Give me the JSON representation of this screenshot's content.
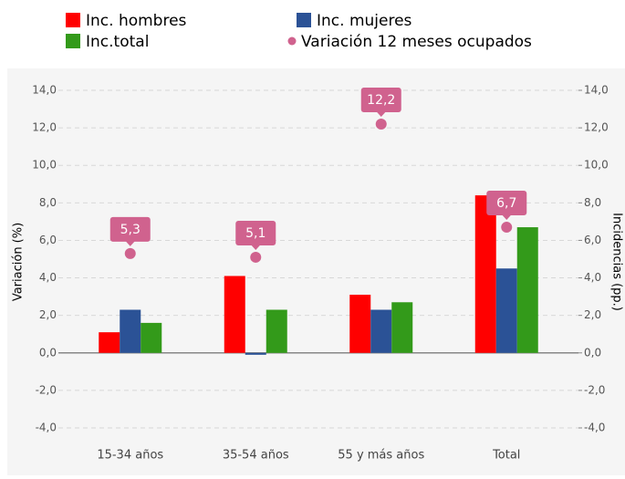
{
  "chart_data": {
    "type": "bar",
    "categories": [
      "15-34 años",
      "35-54 años",
      "55 y más años",
      "Total"
    ],
    "series": [
      {
        "name": "Inc. hombres",
        "color": "#ff0000",
        "values": [
          1.1,
          4.1,
          3.1,
          8.4
        ],
        "axis": "y2"
      },
      {
        "name": "Inc. mujeres",
        "color": "#2b5296",
        "values": [
          2.3,
          -0.1,
          2.3,
          4.5
        ],
        "axis": "y2"
      },
      {
        "name": "Inc.total",
        "color": "#339a1a",
        "values": [
          1.6,
          2.3,
          2.7,
          6.7
        ],
        "axis": "y2"
      },
      {
        "name": "Variación 12 meses ocupados",
        "color": "#d0628e",
        "type": "scatter",
        "values": [
          5.3,
          5.1,
          12.2,
          6.7
        ],
        "value_labels": [
          "5,3",
          "5,1",
          "12,2",
          "6,7"
        ]
      }
    ],
    "ylabel": "Variación (%)",
    "y2label": "Incidencias (pp.)",
    "ylim": [
      -4,
      14
    ],
    "yticks": [
      {
        "value": -4,
        "label": "-4,0"
      },
      {
        "value": -2,
        "label": "-2,0"
      },
      {
        "value": 0,
        "label": "0,0"
      },
      {
        "value": 2,
        "label": "2,0"
      },
      {
        "value": 4,
        "label": "4,0"
      },
      {
        "value": 6,
        "label": "6,0"
      },
      {
        "value": 8,
        "label": "8,0"
      },
      {
        "value": 10,
        "label": "10,0"
      },
      {
        "value": 12,
        "label": "12,0"
      },
      {
        "value": 14,
        "label": "14,0"
      }
    ],
    "y2lim": [
      -4,
      14
    ],
    "y2ticks": [
      {
        "value": -4,
        "label": "-4,0"
      },
      {
        "value": -2,
        "label": "-2,0"
      },
      {
        "value": 0,
        "label": "0,0"
      },
      {
        "value": 2,
        "label": "2,0"
      },
      {
        "value": 4,
        "label": "4,0"
      },
      {
        "value": 6,
        "label": "6,0"
      },
      {
        "value": 8,
        "label": "8,0"
      },
      {
        "value": 10,
        "label": "10,0"
      },
      {
        "value": 12,
        "label": "12,0"
      },
      {
        "value": 14,
        "label": "14,0"
      }
    ],
    "grid": true
  }
}
